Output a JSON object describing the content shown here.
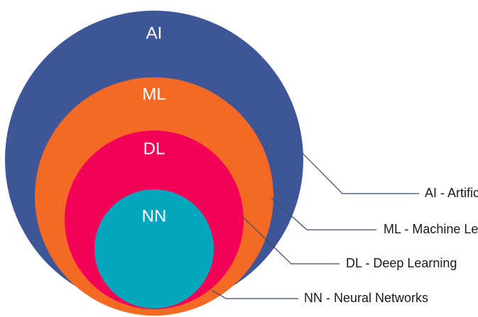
{
  "diagram": {
    "circles": {
      "ai": {
        "label": "AI",
        "color": "#3e5597"
      },
      "ml": {
        "label": "ML",
        "color": "#f46a25"
      },
      "dl": {
        "label": "DL",
        "color": "#f30357"
      },
      "nn": {
        "label": "NN",
        "color": "#05a6bc"
      }
    },
    "legend": {
      "ai": "AI - Artificial Intelligence",
      "ml": "ML - Machine Learning",
      "dl": "DL - Deep Learning",
      "nn": "NN - Neural Networks"
    }
  }
}
